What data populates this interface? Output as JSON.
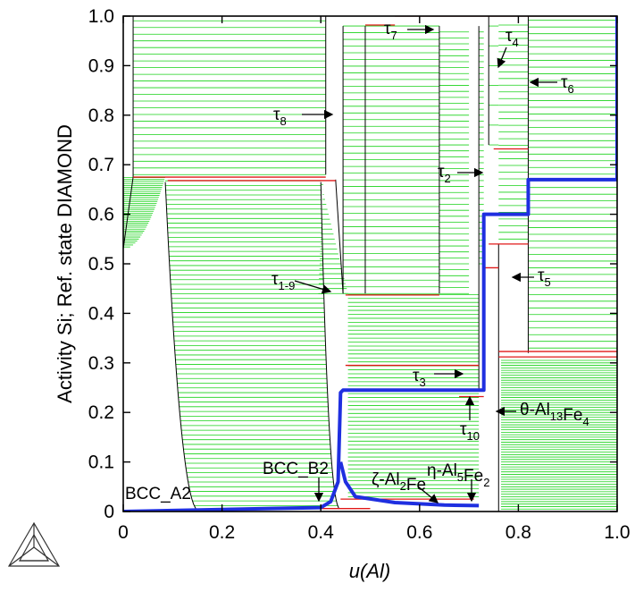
{
  "chart_data": {
    "type": "line",
    "title": "",
    "xlabel": "u(Al)",
    "ylabel": "Activity Si; Ref. state DIAMOND",
    "xlim": [
      0,
      1
    ],
    "ylim": [
      0,
      1
    ],
    "x_ticks": [
      "0",
      "0.2",
      "0.4",
      "0.6",
      "0.8",
      "1.0"
    ],
    "y_ticks": [
      "0",
      "0.1",
      "0.2",
      "0.3",
      "0.4",
      "0.5",
      "0.6",
      "0.7",
      "0.8",
      "0.9",
      "1.0"
    ],
    "grid": false,
    "colors": {
      "path": "#1f2fe0",
      "tie_lines": "#19d219",
      "three_phase": "#e01818",
      "boundary": "#000000"
    },
    "series": [
      {
        "values": [
          [
            0.0,
            0.0
          ],
          [
            0.1,
            0.002
          ],
          [
            0.2,
            0.004
          ],
          [
            0.3,
            0.006
          ],
          [
            0.4,
            0.008
          ],
          [
            0.42,
            0.02
          ],
          [
            0.435,
            0.06
          ],
          [
            0.44,
            0.24
          ],
          [
            0.445,
            0.245
          ],
          [
            0.5,
            0.245
          ],
          [
            0.6,
            0.245
          ],
          [
            0.7,
            0.245
          ],
          [
            0.73,
            0.245
          ],
          [
            0.73,
            0.6
          ],
          [
            0.8,
            0.6
          ],
          [
            0.82,
            0.6
          ],
          [
            0.82,
            0.67
          ],
          [
            0.9,
            0.67
          ],
          [
            1.0,
            0.67
          ],
          [
            1.0,
            1.0
          ]
        ]
      },
      {
        "values": [
          [
            0.44,
            0.1
          ],
          [
            0.45,
            0.06
          ],
          [
            0.47,
            0.03
          ],
          [
            0.55,
            0.018
          ],
          [
            0.65,
            0.013
          ],
          [
            0.72,
            0.012
          ]
        ]
      }
    ],
    "three_phase_levels": [
      {
        "x": [
          0.02,
          0.41
        ],
        "y": 0.675
      },
      {
        "x": [
          0.09,
          0.43
        ],
        "y": 0.668
      },
      {
        "x": [
          0.38,
          0.5
        ],
        "y": 0.006
      },
      {
        "x": [
          0.44,
          0.71
        ],
        "y": 0.025
      },
      {
        "x": [
          0.45,
          0.64
        ],
        "y": 0.437
      },
      {
        "x": [
          0.45,
          0.72
        ],
        "y": 0.295
      },
      {
        "x": [
          0.45,
          0.72
        ],
        "y": 0.245
      },
      {
        "x": [
          0.68,
          0.73
        ],
        "y": 0.232
      },
      {
        "x": [
          0.49,
          0.55
        ],
        "y": 0.982
      },
      {
        "x": [
          0.73,
          0.76
        ],
        "y": 0.492
      },
      {
        "x": [
          0.74,
          0.82
        ],
        "y": 0.54
      },
      {
        "x": [
          0.76,
          1.0
        ],
        "y": 0.312
      },
      {
        "x": [
          0.76,
          1.0
        ],
        "y": 0.323
      },
      {
        "x": [
          0.75,
          0.82
        ],
        "y": 0.732
      },
      {
        "x": [
          0.55,
          1.0
        ],
        "y": 1.0
      }
    ],
    "annotations": [
      {
        "text": "BCC_A2"
      },
      {
        "text": "BCC_B2"
      },
      {
        "base": "τ",
        "sub": "1-9"
      },
      {
        "base": "τ",
        "sub": "8"
      },
      {
        "base": "τ",
        "sub": "7"
      },
      {
        "base": "τ",
        "sub": "4"
      },
      {
        "base": "τ",
        "sub": "6"
      },
      {
        "base": "τ",
        "sub": "2"
      },
      {
        "base": "τ",
        "sub": "5"
      },
      {
        "base": "τ",
        "sub": "3"
      },
      {
        "base": "τ",
        "sub": "10"
      },
      {
        "text": "θ-Al",
        "sub": "13",
        "text2": "Fe",
        "sub2": "4"
      },
      {
        "text": "η-Al",
        "sub": "5",
        "text2": "Fe",
        "sub2": "2"
      },
      {
        "text": "ζ-Al",
        "sub": "2",
        "text2": "Fe"
      }
    ]
  }
}
